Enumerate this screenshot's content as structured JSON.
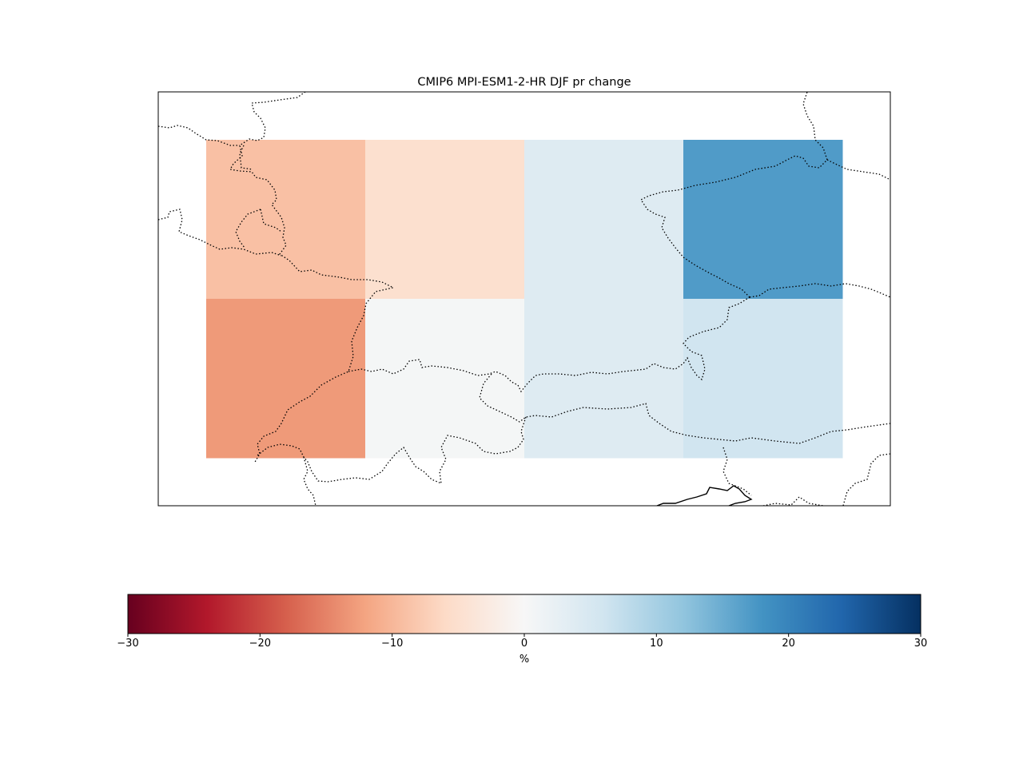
{
  "chart_data": {
    "type": "heatmap",
    "title": "CMIP6 MPI-ESM1-2-HR DJF pr change",
    "rows": 2,
    "cols": 4,
    "values": [
      [
        -9,
        -5,
        4,
        17
      ],
      [
        -13,
        0.5,
        4,
        6
      ]
    ],
    "colorbar": {
      "label": "%",
      "vmin": -30,
      "vmax": 30,
      "ticks": [
        -30,
        -20,
        -10,
        0,
        10,
        20,
        30
      ],
      "tick_labels": [
        "−30",
        "−20",
        "−10",
        "0",
        "10",
        "20",
        "30"
      ],
      "colormap": "RdBu",
      "orientation": "horizontal"
    },
    "overlay": "coastlines and country borders (dotted)"
  }
}
